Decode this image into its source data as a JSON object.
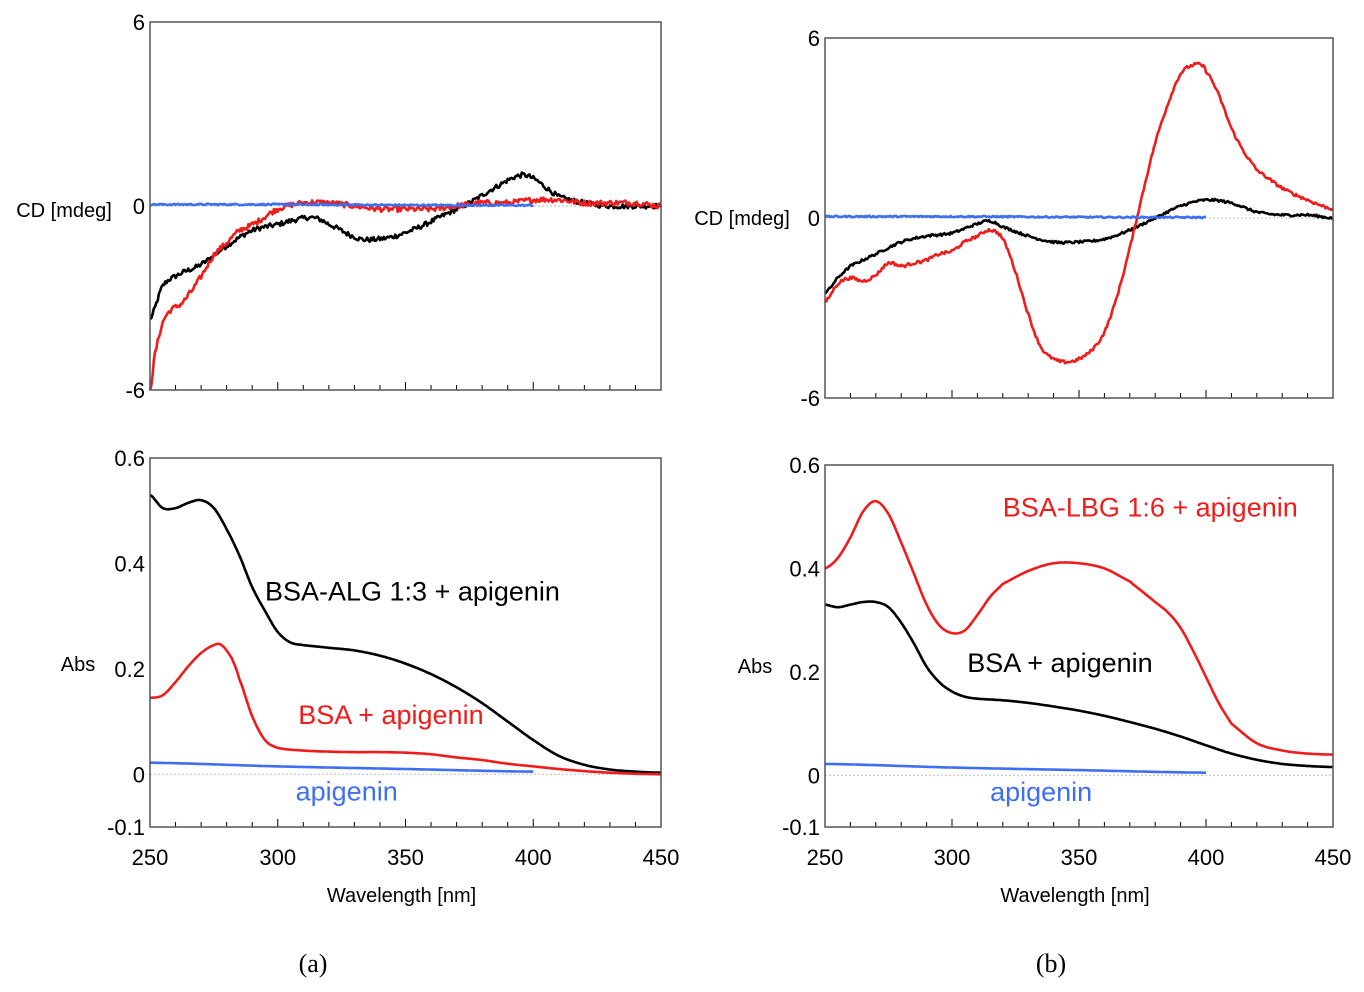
{
  "colors": {
    "red": "#ef1c1c",
    "black": "#000000",
    "blue": "#3e6ff0",
    "zero": "#bbbbbb"
  },
  "panels": [
    {
      "label": "(a)",
      "letter": "a"
    },
    {
      "label": "(b)",
      "letter": "b"
    }
  ],
  "chart_data": [
    {
      "panel": "a",
      "type": "line",
      "title": "",
      "xlabel": "",
      "ylabel": "CD [mdeg]",
      "xlim": [
        250,
        450
      ],
      "ylim": [
        -6,
        6
      ],
      "yticks": [
        {
          "v": -6,
          "label": "-6"
        },
        {
          "v": 0,
          "label": "0"
        },
        {
          "v": 6,
          "label": "6"
        }
      ],
      "xticks": [],
      "zero_line": true,
      "annotations": [],
      "series": [
        {
          "name": "",
          "color": "black",
          "noise": 0.16,
          "x": [
            250,
            255,
            262,
            270,
            280,
            290,
            300,
            310,
            315,
            320,
            330,
            335,
            345,
            355,
            365,
            375,
            385,
            395,
            400,
            405,
            410,
            420,
            430,
            440,
            450
          ],
          "y": [
            -3.7,
            -2.6,
            -2.2,
            -1.9,
            -1.3,
            -0.8,
            -0.6,
            -0.4,
            -0.4,
            -0.6,
            -1.0,
            -1.1,
            -1.0,
            -0.7,
            -0.3,
            0.1,
            0.6,
            1.0,
            0.9,
            0.6,
            0.3,
            0.1,
            0.0,
            0.0,
            0.0
          ]
        },
        {
          "name": "",
          "color": "red",
          "noise": 0.18,
          "x": [
            250,
            252,
            255,
            258,
            262,
            265,
            270,
            275,
            280,
            285,
            290,
            300,
            310,
            320,
            330,
            340,
            350,
            360,
            370,
            380,
            390,
            400,
            410,
            420,
            430,
            440,
            450
          ],
          "y": [
            -6.0,
            -4.8,
            -3.8,
            -3.4,
            -3.2,
            -2.9,
            -2.3,
            -1.6,
            -1.2,
            -0.8,
            -0.6,
            -0.1,
            0.1,
            0.1,
            0.0,
            -0.1,
            -0.1,
            -0.1,
            0.0,
            0.1,
            0.1,
            0.2,
            0.2,
            0.1,
            0.1,
            0.1,
            0.0
          ]
        },
        {
          "name": "",
          "color": "blue",
          "noise": 0.05,
          "x": [
            250,
            300,
            350,
            400
          ],
          "y": [
            0.05,
            0.05,
            0.03,
            0.02
          ]
        }
      ]
    },
    {
      "panel": "b",
      "type": "line",
      "title": "",
      "xlabel": "",
      "ylabel": "CD [mdeg]",
      "xlim": [
        250,
        450
      ],
      "ylim": [
        -6,
        6
      ],
      "yticks": [
        {
          "v": -6,
          "label": "-6"
        },
        {
          "v": 0,
          "label": "0"
        },
        {
          "v": 6,
          "label": "6"
        }
      ],
      "xticks": [],
      "zero_line": true,
      "annotations": [],
      "series": [
        {
          "name": "",
          "color": "black",
          "noise": 0.08,
          "x": [
            250,
            255,
            260,
            270,
            280,
            290,
            300,
            310,
            315,
            320,
            330,
            340,
            350,
            360,
            370,
            380,
            390,
            400,
            410,
            420,
            430,
            440,
            450
          ],
          "y": [
            -2.5,
            -2.0,
            -1.6,
            -1.2,
            -0.8,
            -0.6,
            -0.5,
            -0.2,
            -0.1,
            -0.3,
            -0.6,
            -0.8,
            -0.8,
            -0.7,
            -0.4,
            0.0,
            0.4,
            0.6,
            0.5,
            0.2,
            0.1,
            0.1,
            0.0
          ]
        },
        {
          "name": "",
          "color": "red",
          "noise": 0.1,
          "x": [
            250,
            255,
            260,
            265,
            270,
            275,
            280,
            285,
            290,
            295,
            300,
            305,
            310,
            315,
            320,
            325,
            330,
            335,
            340,
            345,
            350,
            355,
            360,
            365,
            370,
            375,
            380,
            385,
            390,
            395,
            398,
            400,
            405,
            410,
            415,
            420,
            430,
            440,
            450
          ],
          "y": [
            -2.8,
            -2.2,
            -2.0,
            -2.1,
            -1.9,
            -1.5,
            -1.6,
            -1.5,
            -1.4,
            -1.2,
            -1.1,
            -0.8,
            -0.6,
            -0.4,
            -0.7,
            -1.8,
            -3.2,
            -4.3,
            -4.7,
            -4.8,
            -4.7,
            -4.4,
            -3.8,
            -2.6,
            -1.0,
            0.8,
            2.5,
            3.8,
            4.8,
            5.1,
            5.1,
            4.9,
            4.1,
            3.0,
            2.2,
            1.6,
            1.0,
            0.6,
            0.3
          ]
        },
        {
          "name": "",
          "color": "blue",
          "noise": 0.05,
          "x": [
            250,
            300,
            350,
            400
          ],
          "y": [
            0.05,
            0.05,
            0.03,
            0.02
          ]
        }
      ]
    },
    {
      "panel": "a",
      "type": "line",
      "title": "",
      "xlabel": "Wavelength [nm]",
      "ylabel": "Abs",
      "xlim": [
        250,
        450
      ],
      "ylim": [
        -0.1,
        0.6
      ],
      "yticks": [
        {
          "v": -0.1,
          "label": "-0.1"
        },
        {
          "v": 0,
          "label": "0"
        },
        {
          "v": 0.2,
          "label": "0.2"
        },
        {
          "v": 0.4,
          "label": "0.4"
        },
        {
          "v": 0.6,
          "label": "0.6"
        }
      ],
      "xticks": [
        {
          "v": 250,
          "label": "250"
        },
        {
          "v": 300,
          "label": "300"
        },
        {
          "v": 350,
          "label": "350"
        },
        {
          "v": 400,
          "label": "400"
        },
        {
          "v": 450,
          "label": "450"
        }
      ],
      "zero_line": true,
      "annotations": [
        {
          "text": "BSA-ALG 1:3 + apigenin",
          "color": "black",
          "x": 295,
          "y": 0.33
        },
        {
          "text": "BSA + apigenin",
          "color": "red",
          "x": 308,
          "y": 0.095
        },
        {
          "text": "apigenin",
          "color": "blue",
          "x": 307,
          "y": -0.05
        }
      ],
      "series": [
        {
          "name": "",
          "color": "black",
          "noise": 0,
          "x": [
            250,
            255,
            260,
            265,
            270,
            275,
            280,
            285,
            290,
            295,
            300,
            305,
            310,
            320,
            330,
            340,
            350,
            360,
            370,
            380,
            390,
            400,
            410,
            420,
            430,
            440,
            450
          ],
          "y": [
            0.53,
            0.505,
            0.505,
            0.515,
            0.52,
            0.505,
            0.465,
            0.415,
            0.355,
            0.31,
            0.27,
            0.25,
            0.245,
            0.24,
            0.235,
            0.225,
            0.21,
            0.19,
            0.165,
            0.135,
            0.1,
            0.065,
            0.035,
            0.018,
            0.009,
            0.005,
            0.003
          ]
        },
        {
          "name": "",
          "color": "red",
          "noise": 0,
          "x": [
            250,
            255,
            260,
            265,
            270,
            275,
            278,
            282,
            285,
            290,
            295,
            300,
            310,
            320,
            330,
            340,
            350,
            360,
            370,
            380,
            390,
            400,
            410,
            420,
            430,
            440,
            450
          ],
          "y": [
            0.145,
            0.15,
            0.175,
            0.205,
            0.23,
            0.245,
            0.245,
            0.22,
            0.18,
            0.11,
            0.065,
            0.05,
            0.045,
            0.043,
            0.042,
            0.042,
            0.041,
            0.038,
            0.032,
            0.027,
            0.02,
            0.015,
            0.01,
            0.006,
            0.003,
            0.001,
            0.0
          ]
        },
        {
          "name": "",
          "color": "blue",
          "noise": 0,
          "x": [
            250,
            300,
            350,
            400
          ],
          "y": [
            0.022,
            0.015,
            0.01,
            0.005
          ]
        }
      ]
    },
    {
      "panel": "b",
      "type": "line",
      "title": "",
      "xlabel": "Wavelength [nm]",
      "ylabel": "Abs",
      "xlim": [
        250,
        450
      ],
      "ylim": [
        -0.1,
        0.6
      ],
      "yticks": [
        {
          "v": -0.1,
          "label": "-0.1"
        },
        {
          "v": 0,
          "label": "0"
        },
        {
          "v": 0.2,
          "label": "0.2"
        },
        {
          "v": 0.4,
          "label": "0.4"
        },
        {
          "v": 0.6,
          "label": "0.6"
        }
      ],
      "xticks": [
        {
          "v": 250,
          "label": "250"
        },
        {
          "v": 300,
          "label": "300"
        },
        {
          "v": 350,
          "label": "350"
        },
        {
          "v": 400,
          "label": "400"
        },
        {
          "v": 450,
          "label": "450"
        }
      ],
      "zero_line": true,
      "annotations": [
        {
          "text": "BSA-LBG 1:6 + apigenin",
          "color": "red",
          "x": 320,
          "y": 0.5
        },
        {
          "text": "BSA + apigenin",
          "color": "black",
          "x": 306,
          "y": 0.2
        },
        {
          "text": "apigenin",
          "color": "blue",
          "x": 315,
          "y": -0.05
        }
      ],
      "series": [
        {
          "name": "",
          "color": "red",
          "noise": 0,
          "x": [
            250,
            255,
            260,
            265,
            270,
            275,
            280,
            285,
            290,
            295,
            300,
            305,
            310,
            315,
            320,
            330,
            340,
            350,
            360,
            370,
            375,
            380,
            385,
            390,
            395,
            400,
            405,
            410,
            420,
            430,
            440,
            450
          ],
          "y": [
            0.4,
            0.42,
            0.46,
            0.51,
            0.53,
            0.505,
            0.45,
            0.39,
            0.33,
            0.29,
            0.275,
            0.28,
            0.31,
            0.345,
            0.37,
            0.395,
            0.41,
            0.41,
            0.4,
            0.375,
            0.355,
            0.335,
            0.315,
            0.285,
            0.24,
            0.19,
            0.14,
            0.1,
            0.062,
            0.048,
            0.042,
            0.04
          ]
        },
        {
          "name": "",
          "color": "black",
          "noise": 0,
          "x": [
            250,
            255,
            260,
            265,
            270,
            275,
            280,
            285,
            290,
            295,
            300,
            305,
            310,
            320,
            330,
            340,
            350,
            360,
            370,
            380,
            390,
            400,
            410,
            420,
            430,
            440,
            450
          ],
          "y": [
            0.33,
            0.325,
            0.33,
            0.335,
            0.335,
            0.325,
            0.295,
            0.255,
            0.21,
            0.18,
            0.162,
            0.152,
            0.148,
            0.145,
            0.14,
            0.133,
            0.125,
            0.115,
            0.103,
            0.09,
            0.075,
            0.058,
            0.042,
            0.03,
            0.022,
            0.018,
            0.016
          ]
        },
        {
          "name": "",
          "color": "blue",
          "noise": 0,
          "x": [
            250,
            300,
            350,
            400
          ],
          "y": [
            0.022,
            0.015,
            0.01,
            0.005
          ]
        }
      ]
    }
  ]
}
